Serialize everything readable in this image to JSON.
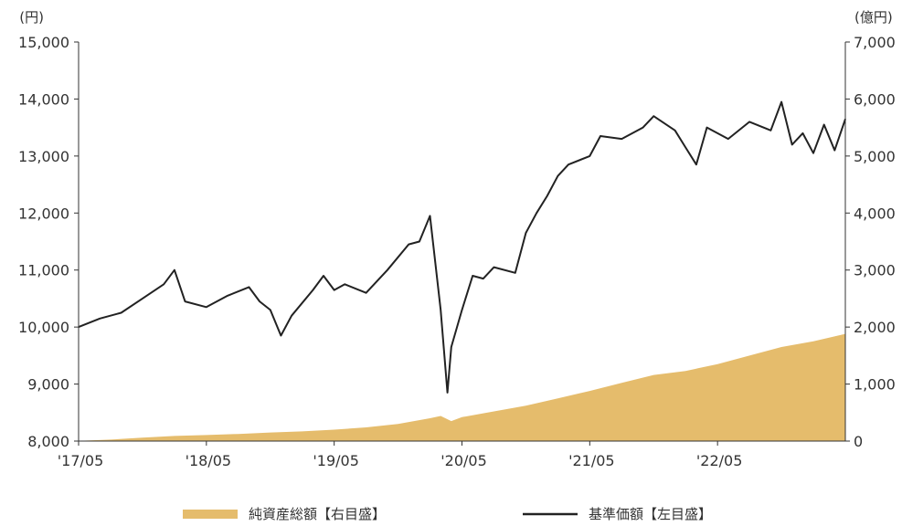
{
  "chart_data": {
    "type": "line",
    "left_unit": "(円)",
    "right_unit": "(億円)",
    "y_left": {
      "min": 8000,
      "max": 15000,
      "ticks": [
        "8,000",
        "9,000",
        "10,000",
        "11,000",
        "12,000",
        "13,000",
        "14,000",
        "15,000"
      ]
    },
    "y_right": {
      "min": 0,
      "max": 7000,
      "ticks": [
        "0",
        "1,000",
        "2,000",
        "3,000",
        "4,000",
        "5,000",
        "6,000",
        "7,000"
      ]
    },
    "x": {
      "start": "2017-05",
      "end": "2023-05",
      "ticks": [
        "'17/05",
        "'18/05",
        "'19/05",
        "'20/05",
        "'21/05",
        "'22/05"
      ]
    },
    "series": [
      {
        "name": "純資産総額【右目盛】",
        "axis": "right",
        "color": "#e5bc6c",
        "style": "area",
        "points": [
          [
            "2017-05",
            5
          ],
          [
            "2017-08",
            25
          ],
          [
            "2017-11",
            60
          ],
          [
            "2018-02",
            90
          ],
          [
            "2018-05",
            105
          ],
          [
            "2018-08",
            125
          ],
          [
            "2018-11",
            150
          ],
          [
            "2019-02",
            170
          ],
          [
            "2019-05",
            200
          ],
          [
            "2019-08",
            240
          ],
          [
            "2019-11",
            300
          ],
          [
            "2020-02",
            400
          ],
          [
            "2020-03",
            440
          ],
          [
            "2020-04",
            350
          ],
          [
            "2020-05",
            420
          ],
          [
            "2020-08",
            520
          ],
          [
            "2020-11",
            620
          ],
          [
            "2021-02",
            750
          ],
          [
            "2021-05",
            880
          ],
          [
            "2021-08",
            1020
          ],
          [
            "2021-11",
            1160
          ],
          [
            "2022-02",
            1230
          ],
          [
            "2022-05",
            1350
          ],
          [
            "2022-08",
            1500
          ],
          [
            "2022-11",
            1650
          ],
          [
            "2023-02",
            1750
          ],
          [
            "2023-05",
            1880
          ]
        ]
      },
      {
        "name": "基準価額【左目盛】",
        "axis": "left",
        "color": "#222222",
        "style": "line",
        "points": [
          [
            "2017-05",
            10000
          ],
          [
            "2017-07",
            10150
          ],
          [
            "2017-09",
            10250
          ],
          [
            "2017-11",
            10500
          ],
          [
            "2018-01",
            10750
          ],
          [
            "2018-02",
            11000
          ],
          [
            "2018-03",
            10450
          ],
          [
            "2018-05",
            10350
          ],
          [
            "2018-07",
            10550
          ],
          [
            "2018-09",
            10700
          ],
          [
            "2018-10",
            10450
          ],
          [
            "2018-11",
            10300
          ],
          [
            "2018-12",
            9850
          ],
          [
            "2019-01",
            10200
          ],
          [
            "2019-03",
            10650
          ],
          [
            "2019-04",
            10900
          ],
          [
            "2019-05",
            10650
          ],
          [
            "2019-06",
            10750
          ],
          [
            "2019-08",
            10600
          ],
          [
            "2019-10",
            11000
          ],
          [
            "2019-12",
            11450
          ],
          [
            "2020-01",
            11500
          ],
          [
            "2020-02",
            11950
          ],
          [
            "2020-03",
            10300
          ],
          [
            "2020-03-20",
            8850
          ],
          [
            "2020-04",
            9650
          ],
          [
            "2020-05",
            10300
          ],
          [
            "2020-06",
            10900
          ],
          [
            "2020-07",
            10850
          ],
          [
            "2020-08",
            11050
          ],
          [
            "2020-10",
            10950
          ],
          [
            "2020-11",
            11650
          ],
          [
            "2020-12",
            12000
          ],
          [
            "2021-01",
            12300
          ],
          [
            "2021-02",
            12650
          ],
          [
            "2021-03",
            12850
          ],
          [
            "2021-05",
            13000
          ],
          [
            "2021-06",
            13350
          ],
          [
            "2021-08",
            13300
          ],
          [
            "2021-10",
            13500
          ],
          [
            "2021-11",
            13700
          ],
          [
            "2022-01",
            13450
          ],
          [
            "2022-02",
            13150
          ],
          [
            "2022-03",
            12850
          ],
          [
            "2022-04",
            13500
          ],
          [
            "2022-06",
            13300
          ],
          [
            "2022-08",
            13600
          ],
          [
            "2022-10",
            13450
          ],
          [
            "2022-11",
            13950
          ],
          [
            "2022-12",
            13200
          ],
          [
            "2023-01",
            13400
          ],
          [
            "2023-02",
            13050
          ],
          [
            "2023-03",
            13550
          ],
          [
            "2023-04",
            13100
          ],
          [
            "2023-05",
            13650
          ]
        ]
      }
    ],
    "legend": {
      "placement": "bottom",
      "area_label": "純資産総額【右目盛】",
      "line_label": "基準価額【左目盛】"
    }
  }
}
